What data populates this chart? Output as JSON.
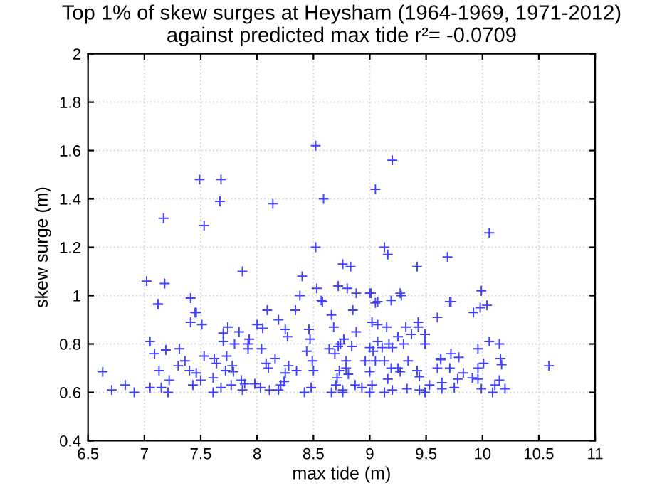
{
  "chart_data": {
    "type": "scatter",
    "title": "Top 1% of skew surges at Heysham (1964-1969, 1971-2012)\nagainst predicted max tide r²= -0.0709",
    "xlabel": "max tide (m)",
    "ylabel": "skew surge (m)",
    "xlim": [
      6.5,
      11
    ],
    "ylim": [
      0.4,
      2
    ],
    "xticks": [
      6.5,
      7,
      7.5,
      8,
      8.5,
      9,
      9.5,
      10,
      10.5,
      11
    ],
    "yticks": [
      0.4,
      0.6,
      0.8,
      1,
      1.2,
      1.4,
      1.6,
      1.8,
      2
    ],
    "grid": true,
    "marker": "cross",
    "series": [
      {
        "color": "#4040ff",
        "x": [
          7.02,
          7.12,
          7.17,
          7.18,
          7.49,
          7.53,
          7.41,
          7.45,
          7.68,
          7.67,
          7.87,
          8.14,
          8.52,
          8.59,
          8.52,
          8.4,
          8.53,
          8.38,
          8.57,
          8.76,
          8.72,
          8.09,
          8.34,
          9.2,
          9.05,
          10.06,
          9.13,
          9.16,
          8.83,
          9.42,
          9.69,
          8.8,
          8.88,
          9.0,
          9.27,
          9.05,
          9.19,
          9.99,
          9.71,
          10.04,
          8.85,
          6.63,
          6.71,
          6.83,
          6.91,
          7.05,
          7.09,
          7.12,
          7.13,
          7.05,
          7.19,
          7.15,
          7.22,
          7.21,
          7.31,
          7.3,
          7.36,
          7.41,
          7.46,
          7.51,
          7.4,
          7.46,
          7.43,
          7.5,
          7.53,
          7.61,
          7.62,
          7.64,
          7.61,
          7.7,
          7.7,
          7.73,
          7.72,
          7.68,
          7.74,
          7.78,
          7.79,
          7.77,
          7.8,
          7.84,
          7.86,
          7.87,
          7.92,
          7.92,
          7.93,
          7.89,
          8.0,
          8.04,
          7.98,
          8.05,
          8.03,
          8.08,
          8.11,
          8.1,
          8.19,
          8.16,
          8.19,
          8.21,
          8.25,
          8.27,
          8.28,
          8.25,
          8.24,
          8.35,
          8.46,
          8.47,
          8.44,
          8.42,
          8.5,
          8.58,
          8.49,
          8.48,
          8.66,
          8.68,
          8.64,
          8.69,
          8.72,
          8.74,
          8.73,
          8.66,
          8.7,
          8.76,
          8.79,
          8.71,
          9.01,
          9.28,
          9.07,
          9.72,
          9.92,
          9.98,
          9.6,
          9.02,
          9.07,
          9.15,
          8.88,
          9.32,
          9.37,
          9.43,
          9.43,
          9.49,
          8.77,
          9.25,
          9.07,
          9.17,
          9.2,
          9.3,
          9.49,
          8.84,
          9.0,
          9.03,
          9.11,
          10.06,
          10.15,
          9.96,
          9.72,
          9.63,
          9.79,
          9.34,
          9.42,
          8.79,
          8.96,
          9.05,
          9.13,
          9.25,
          9.19,
          9.63,
          9.71,
          9.6,
          9.96,
          10.01,
          10.16,
          10.17,
          10.59,
          8.81,
          9.0,
          9.27,
          9.83,
          9.91,
          9.78,
          9.02,
          9.16,
          9.44,
          9.53,
          9.64,
          9.75,
          9.96,
          9.99,
          10.09,
          10.2,
          10.15,
          10.11,
          8.87,
          8.93,
          9.0,
          9.13,
          9.2,
          9.33,
          9.44,
          9.49,
          9.64,
          8.76
        ],
        "values": [
          1.06,
          0.965,
          1.32,
          1.05,
          1.48,
          1.29,
          0.99,
          0.93,
          1.48,
          1.39,
          1.1,
          1.38,
          1.62,
          1.4,
          1.2,
          1.08,
          1.03,
          1.0,
          0.98,
          1.13,
          1.04,
          0.94,
          0.94,
          1.56,
          1.44,
          1.26,
          1.2,
          1.17,
          1.12,
          1.12,
          1.16,
          1.03,
          1.01,
          1.01,
          1.01,
          0.97,
          0.98,
          1.02,
          0.975,
          0.96,
          0.94,
          0.685,
          0.61,
          0.63,
          0.6,
          0.81,
          0.76,
          0.965,
          0.69,
          0.62,
          0.775,
          0.62,
          0.65,
          0.6,
          0.78,
          0.71,
          0.73,
          0.89,
          0.93,
          0.88,
          0.69,
          0.68,
          0.63,
          0.65,
          0.75,
          0.6,
          0.74,
          0.72,
          0.66,
          0.81,
          0.845,
          0.75,
          0.69,
          0.62,
          0.87,
          0.71,
          0.685,
          0.63,
          0.8,
          0.85,
          0.65,
          0.61,
          0.8,
          0.78,
          0.82,
          0.635,
          0.88,
          0.78,
          0.635,
          0.865,
          0.62,
          0.72,
          0.61,
          0.7,
          0.9,
          0.74,
          0.61,
          0.63,
          0.86,
          0.83,
          0.71,
          0.68,
          0.645,
          0.69,
          0.86,
          0.82,
          0.77,
          0.6,
          0.69,
          0.975,
          0.73,
          0.62,
          0.92,
          0.87,
          0.78,
          0.76,
          0.79,
          0.8,
          0.69,
          0.6,
          0.63,
          0.6,
          0.7,
          0.66,
          1.01,
          1.0,
          0.975,
          0.975,
          0.93,
          0.95,
          0.91,
          0.89,
          0.88,
          0.87,
          0.85,
          0.87,
          0.84,
          0.89,
          0.87,
          0.84,
          0.82,
          0.83,
          0.81,
          0.8,
          0.785,
          0.8,
          0.8,
          0.79,
          0.785,
          0.77,
          0.785,
          0.81,
          0.8,
          0.78,
          0.76,
          0.74,
          0.745,
          0.73,
          0.69,
          0.73,
          0.73,
          0.73,
          0.73,
          0.7,
          0.7,
          0.735,
          0.7,
          0.7,
          0.7,
          0.72,
          0.74,
          0.715,
          0.71,
          0.675,
          0.685,
          0.685,
          0.68,
          0.66,
          0.655,
          0.63,
          0.655,
          0.665,
          0.63,
          0.64,
          0.62,
          0.655,
          0.615,
          0.6,
          0.615,
          0.65,
          0.63,
          0.63,
          0.62,
          0.6,
          0.6,
          0.61,
          0.615,
          0.61,
          0.6,
          0.615,
          0.61
        ]
      }
    ]
  }
}
